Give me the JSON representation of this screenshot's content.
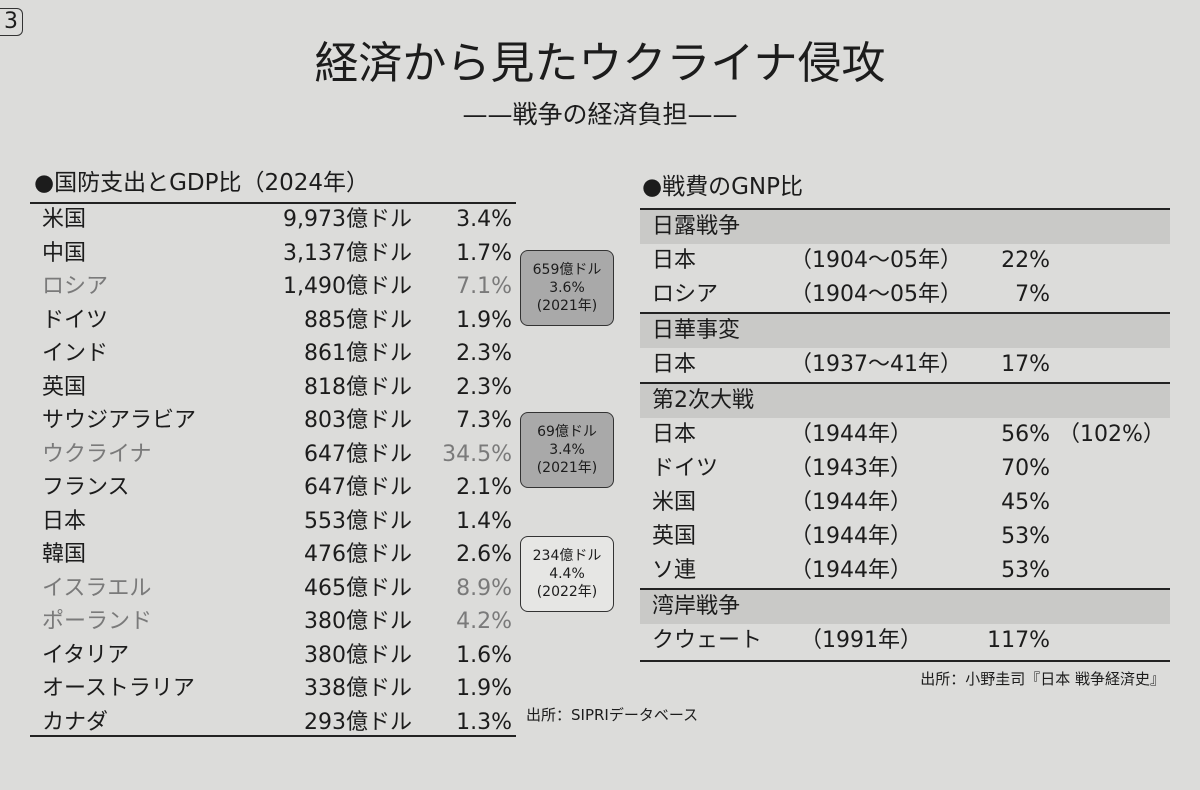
{
  "corner_label": "3",
  "header": {
    "title": "経済から見たウクライナ侵攻",
    "subtitle": "——戦争の経済負担——"
  },
  "defense": {
    "heading": "●国防支出とGDP比（2024年）",
    "rows": [
      {
        "country": "米国",
        "spending": "9,973億ドル",
        "ratio": "3.4%",
        "muted": false
      },
      {
        "country": "中国",
        "spending": "3,137億ドル",
        "ratio": "1.7%",
        "muted": false
      },
      {
        "country": "ロシア",
        "spending": "1,490億ドル",
        "ratio": "7.1%",
        "muted": true
      },
      {
        "country": "ドイツ",
        "spending": "885億ドル",
        "ratio": "1.9%",
        "muted": false
      },
      {
        "country": "インド",
        "spending": "861億ドル",
        "ratio": "2.3%",
        "muted": false
      },
      {
        "country": "英国",
        "spending": "818億ドル",
        "ratio": "2.3%",
        "muted": false
      },
      {
        "country": "サウジアラビア",
        "spending": "803億ドル",
        "ratio": "7.3%",
        "muted": false
      },
      {
        "country": "ウクライナ",
        "spending": "647億ドル",
        "ratio": "34.5%",
        "muted": true
      },
      {
        "country": "フランス",
        "spending": "647億ドル",
        "ratio": "2.1%",
        "muted": false
      },
      {
        "country": "日本",
        "spending": "553億ドル",
        "ratio": "1.4%",
        "muted": false
      },
      {
        "country": "韓国",
        "spending": "476億ドル",
        "ratio": "2.6%",
        "muted": false
      },
      {
        "country": "イスラエル",
        "spending": "465億ドル",
        "ratio": "8.9%",
        "muted": true
      },
      {
        "country": "ポーランド",
        "spending": "380億ドル",
        "ratio": "4.2%",
        "muted": true
      },
      {
        "country": "イタリア",
        "spending": "380億ドル",
        "ratio": "1.6%",
        "muted": false
      },
      {
        "country": "オーストラリア",
        "spending": "338億ドル",
        "ratio": "1.9%",
        "muted": false
      },
      {
        "country": "カナダ",
        "spending": "293億ドル",
        "ratio": "1.3%",
        "muted": false
      }
    ],
    "callouts": [
      {
        "lines": [
          "659億ドル",
          "3.6%",
          "(2021年)"
        ],
        "shaded": true
      },
      {
        "lines": [
          "69億ドル",
          "3.4%",
          "(2021年)"
        ],
        "shaded": true
      },
      {
        "lines": [
          "234億ドル",
          "4.4%",
          "(2022年)"
        ],
        "shaded": false
      }
    ],
    "source": "出所：SIPRIデータベース"
  },
  "war_costs": {
    "heading": "●戦費のGNP比",
    "sections": [
      {
        "name": "日露戦争",
        "rows": [
          [
            "日本",
            "（1904〜05年）",
            "22%"
          ],
          [
            "ロシア",
            "（1904〜05年）",
            "7%"
          ]
        ]
      },
      {
        "name": "日華事変",
        "rows": [
          [
            "日本",
            "（1937〜41年）",
            "17%"
          ]
        ]
      },
      {
        "name": "第2次大戦",
        "rows": [
          [
            "日本",
            "（1944年）",
            "56%",
            "（102%）"
          ],
          [
            "ドイツ",
            "（1943年）",
            "70%"
          ],
          [
            "米国",
            "（1944年）",
            "45%"
          ],
          [
            "英国",
            "（1944年）",
            "53%"
          ],
          [
            "ソ連",
            "（1944年）",
            "53%"
          ]
        ]
      },
      {
        "name": "湾岸戦争",
        "rows": [
          [
            "クウェート",
            "（1991年）",
            "117%"
          ]
        ]
      }
    ],
    "source": "出所：小野圭司『日本 戦争経済史』"
  }
}
